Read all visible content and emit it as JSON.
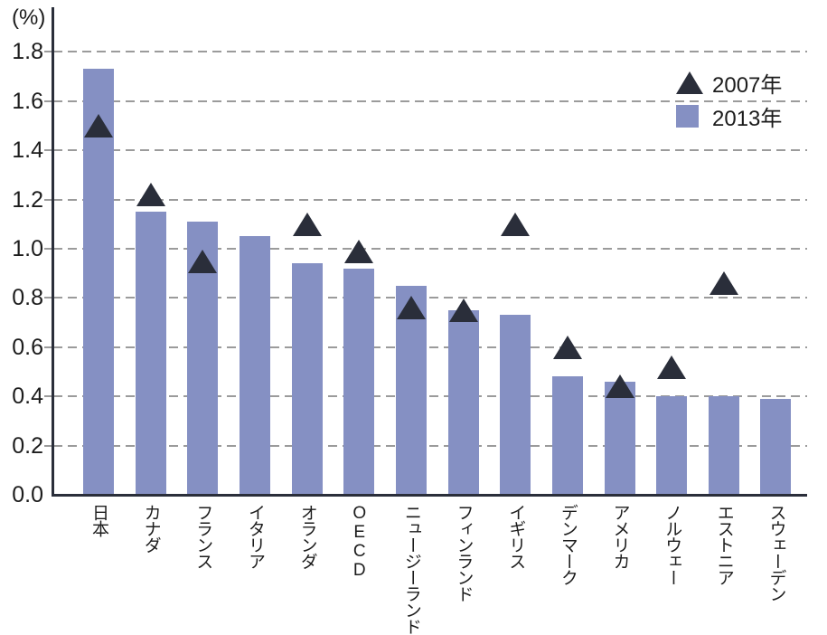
{
  "chart_data": {
    "type": "bar",
    "title": "",
    "unit_label": "(%)",
    "categories": [
      "日本",
      "カナダ",
      "フランス",
      "イタリア",
      "オランダ",
      "OECD",
      "ニュージーランド",
      "フィンランド",
      "イギリス",
      "デンマーク",
      "アメリカ",
      "ノルウェー",
      "エストニア",
      "スウェーデン"
    ],
    "series": [
      {
        "name": "2007年",
        "mark": "triangle",
        "color": "#2a2e3a",
        "values": [
          1.5,
          1.22,
          0.95,
          null,
          1.1,
          0.99,
          0.76,
          0.75,
          1.1,
          0.6,
          0.44,
          0.52,
          0.86,
          null
        ]
      },
      {
        "name": "2013年",
        "mark": "bar",
        "color": "#8590c3",
        "values": [
          1.73,
          1.15,
          1.11,
          1.05,
          0.94,
          0.92,
          0.85,
          0.75,
          0.73,
          0.48,
          0.46,
          0.4,
          0.4,
          0.39
        ]
      }
    ],
    "y_ticks": [
      "0.0",
      "0.2",
      "0.4",
      "0.6",
      "0.8",
      "1.0",
      "1.2",
      "1.4",
      "1.6",
      "1.8"
    ],
    "ylim": [
      0.0,
      1.9
    ],
    "grid": "horizontal-dashed",
    "legend_position": "top-right-inside",
    "colors": {
      "bar": "#8590c3",
      "dark": "#2a2e3a",
      "grid": "#9b9b9b"
    }
  }
}
